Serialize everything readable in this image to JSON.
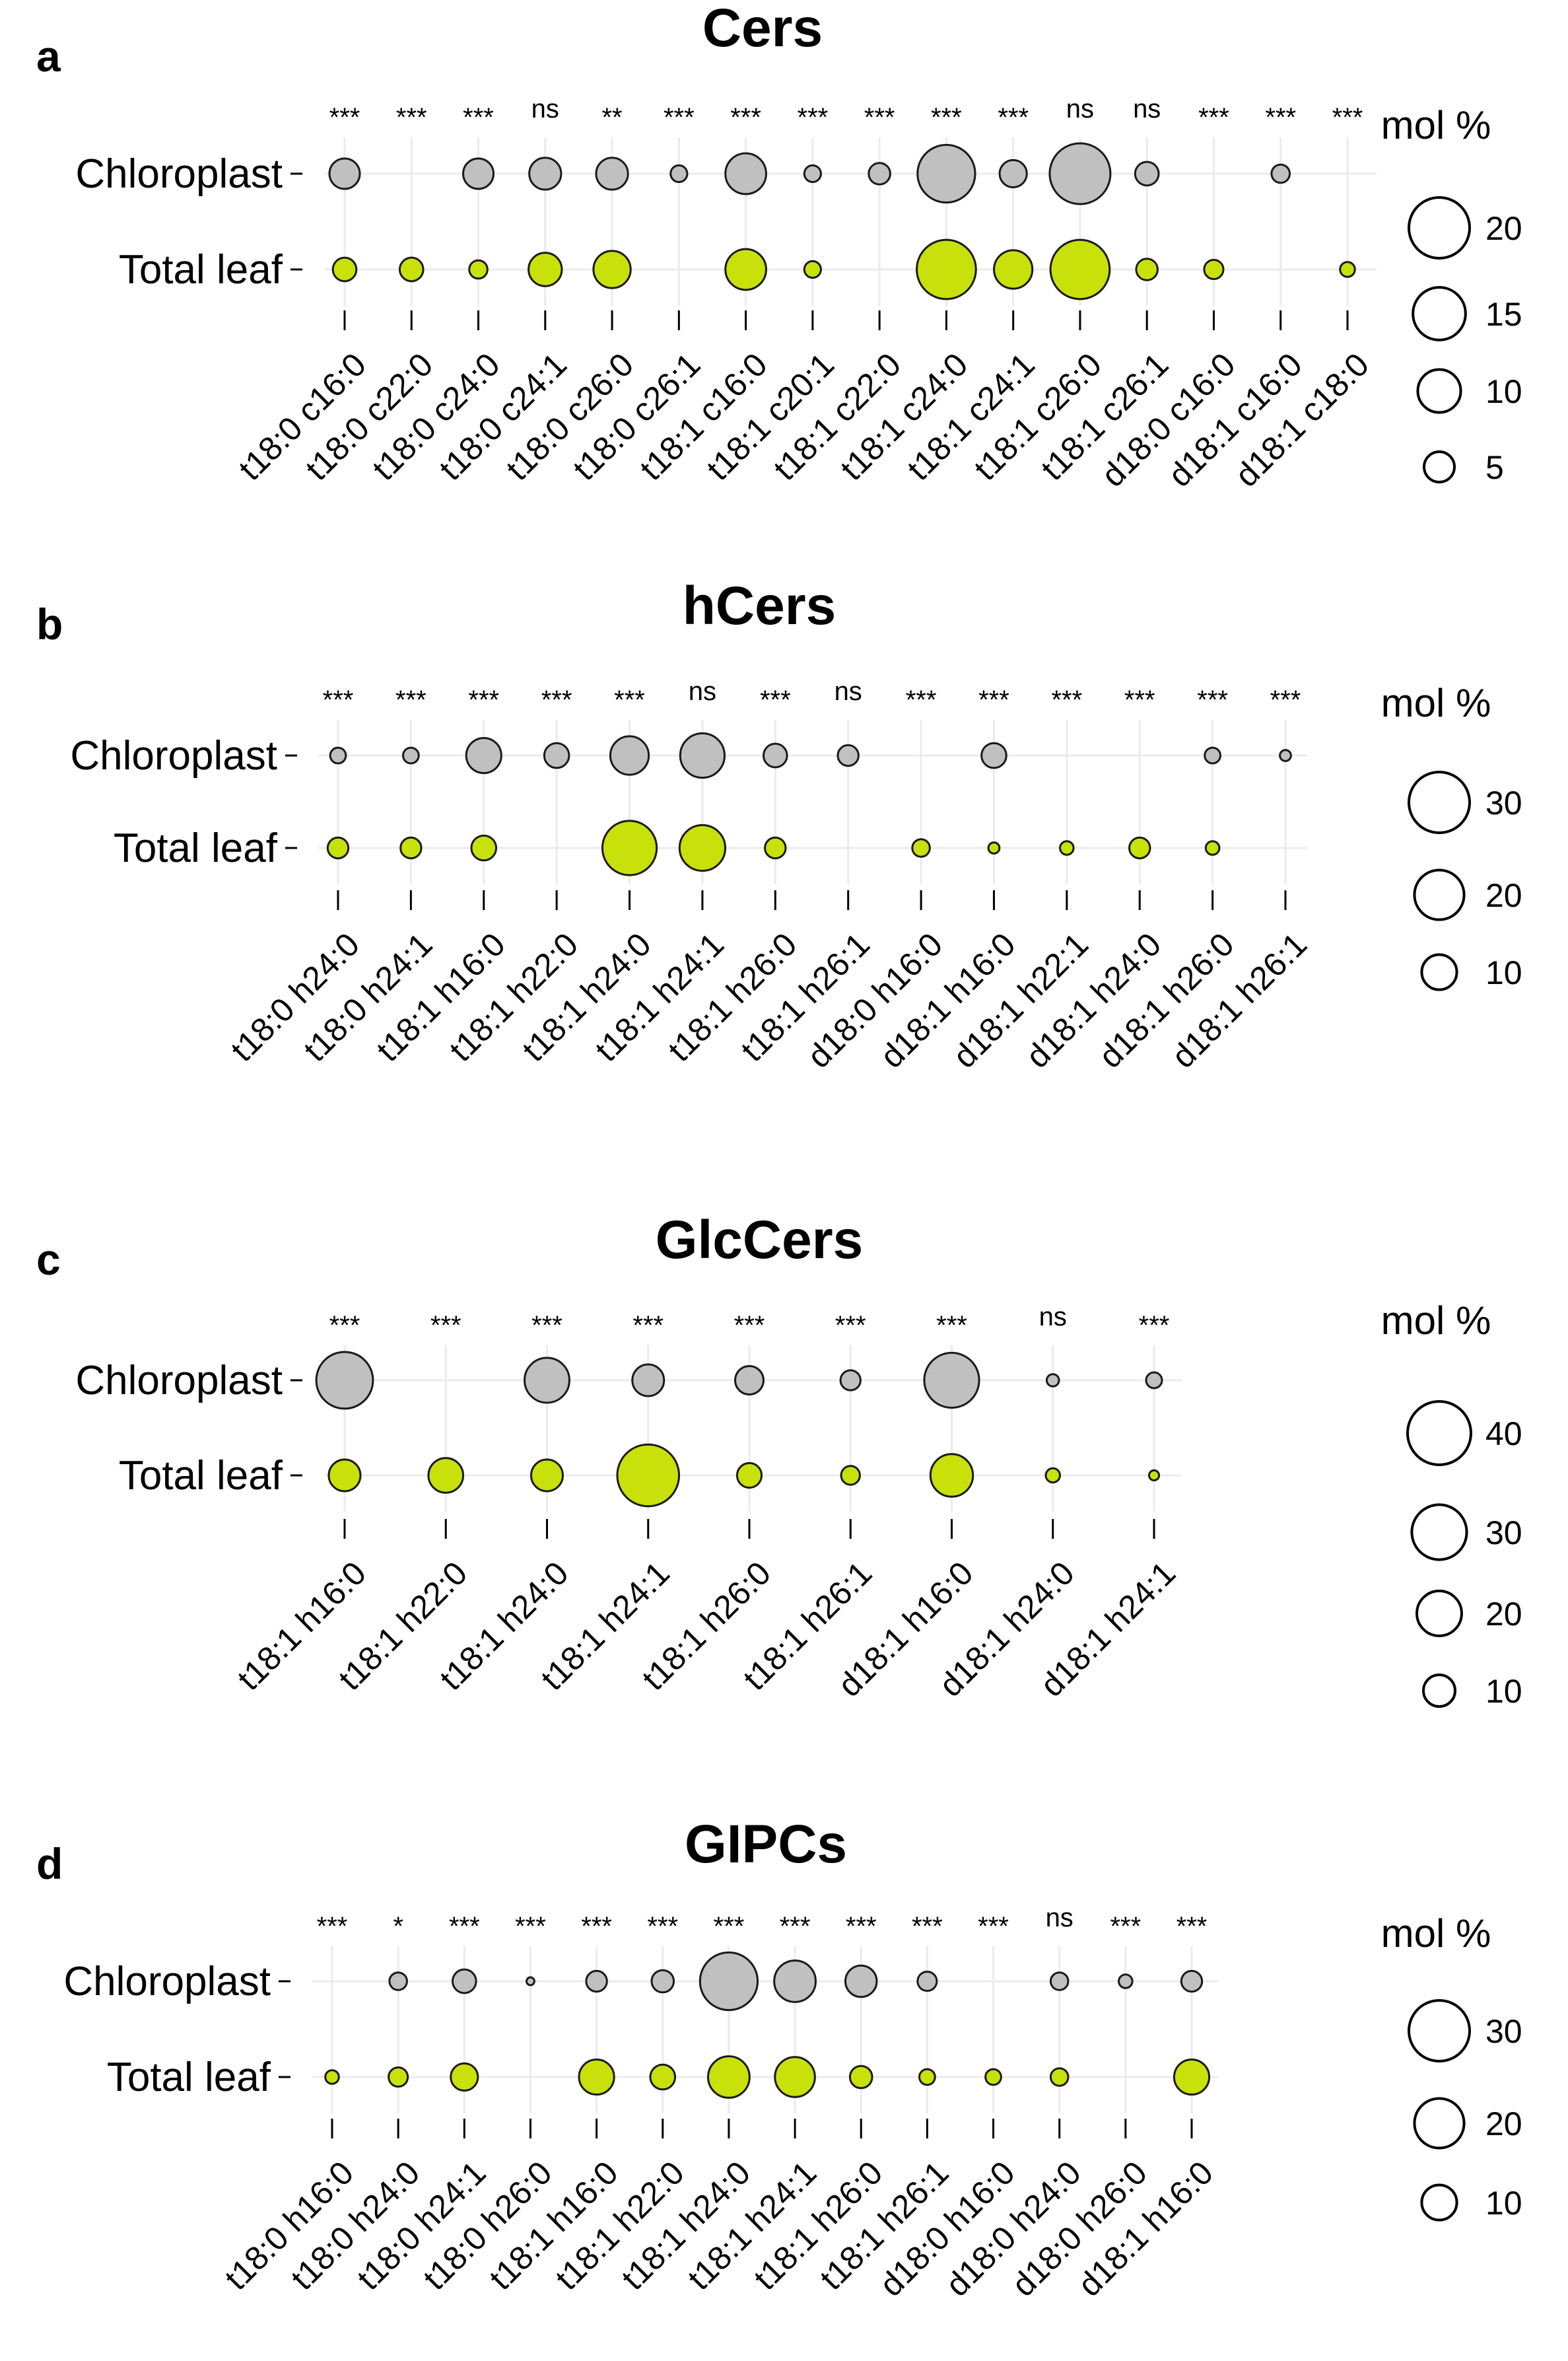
{
  "figure": {
    "row_labels": [
      "Chloroplast",
      "Total leaf"
    ],
    "colors": {
      "chloroplast": "#c0c0c0",
      "total_leaf": "#c8e10a",
      "grid": "#ebebeb"
    }
  },
  "chart_data": [
    {
      "type": "bubble",
      "panel": "a",
      "title": "Cers",
      "rows": [
        "Chloroplast",
        "Total leaf"
      ],
      "categories": [
        "t18:0 c16:0",
        "t18:0 c22:0",
        "t18:0 c24:0",
        "t18:0 c24:1",
        "t18:0 c26:0",
        "t18:0 c26:1",
        "t18:1 c16:0",
        "t18:1 c20:1",
        "t18:1 c22:0",
        "t18:1 c24:0",
        "t18:1 c24:1",
        "t18:1 c26:0",
        "t18:1 c26:1",
        "d18:0 c16:0",
        "d18:1 c16:0",
        "d18:1 c18:0"
      ],
      "significance": [
        "***",
        "***",
        "***",
        "ns",
        "**",
        "***",
        "***",
        "***",
        "***",
        "***",
        "***",
        "ns",
        "ns",
        "***",
        "***",
        "***"
      ],
      "series": [
        {
          "name": "Chloroplast",
          "values": [
            5,
            0,
            5,
            5.5,
            5.5,
            1.5,
            9,
            1.5,
            2.5,
            18,
            4,
            20,
            3,
            0,
            1.8,
            0
          ]
        },
        {
          "name": "Total leaf",
          "values": [
            3,
            3,
            1.8,
            6,
            7.5,
            0,
            9,
            1.5,
            0,
            19,
            8,
            19,
            2.5,
            2,
            0,
            1.2
          ]
        }
      ],
      "legend": {
        "title": "mol %",
        "values": [
          20,
          15,
          10,
          5
        ]
      }
    },
    {
      "type": "bubble",
      "panel": "b",
      "title": "hCers",
      "rows": [
        "Chloroplast",
        "Total leaf"
      ],
      "categories": [
        "t18:0 h24:0",
        "t18:0 h24:1",
        "t18:1 h16:0",
        "t18:1 h22:0",
        "t18:1 h24:0",
        "t18:1 h24:1",
        "t18:1 h26:0",
        "t18:1 h26:1",
        "d18:0 h16:0",
        "d18:1 h16:0",
        "d18:1 h22:1",
        "d18:1 h24:0",
        "d18:1 h26:0",
        "d18:1 h26:1"
      ],
      "significance": [
        "***",
        "***",
        "***",
        "***",
        "***",
        "ns",
        "***",
        "ns",
        "***",
        "***",
        "***",
        "***",
        "***",
        "***"
      ],
      "series": [
        {
          "name": "Chloroplast",
          "values": [
            2,
            2,
            10,
            5,
            12,
            16,
            4.5,
            3.5,
            0,
            5,
            0,
            0,
            2,
            1
          ]
        },
        {
          "name": "Total leaf",
          "values": [
            3.5,
            3.5,
            5,
            0,
            24,
            17,
            3.5,
            0,
            2.5,
            1,
            1.5,
            3.5,
            1.5,
            0
          ]
        }
      ],
      "legend": {
        "title": "mol %",
        "values": [
          30,
          20,
          10
        ]
      }
    },
    {
      "type": "bubble",
      "panel": "c",
      "title": "GlcCers",
      "rows": [
        "Chloroplast",
        "Total leaf"
      ],
      "categories": [
        "t18:1 h16:0",
        "t18:1 h22:0",
        "t18:1 h24:0",
        "t18:1 h24:1",
        "t18:1 h26:0",
        "t18:1 h26:1",
        "d18:1 h16:0",
        "d18:1 h24:0",
        "d18:1 h24:1"
      ],
      "significance": [
        "***",
        "***",
        "***",
        "***",
        "***",
        "***",
        "***",
        "ns",
        "***"
      ],
      "series": [
        {
          "name": "Chloroplast",
          "values": [
            32,
            0,
            20,
            10,
            8,
            4,
            30,
            1.5,
            2.5
          ]
        },
        {
          "name": "Total leaf",
          "values": [
            10,
            12,
            10,
            38,
            6,
            3.5,
            18,
            2,
            1
          ]
        }
      ],
      "legend": {
        "title": "mol %",
        "values": [
          40,
          30,
          20,
          10
        ]
      }
    },
    {
      "type": "bubble",
      "panel": "d",
      "title": "GIPCs",
      "rows": [
        "Chloroplast",
        "Total leaf"
      ],
      "categories": [
        "t18:0 h16:0",
        "t18:0 h24:0",
        "t18:0 h24:1",
        "t18:0 h26:0",
        "t18:1 h16:0",
        "t18:1 h22:0",
        "t18:1 h24:0",
        "t18:1 h24:1",
        "t18:1 h26:0",
        "t18:1 h26:1",
        "d18:0 h16:0",
        "d18:0 h24:0",
        "d18:0 h26:0",
        "d18:1 h16:0"
      ],
      "significance": [
        "***",
        "*",
        "***",
        "***",
        "***",
        "***",
        "***",
        "***",
        "***",
        "***",
        "***",
        "ns",
        "***",
        "***"
      ],
      "series": [
        {
          "name": "Chloroplast",
          "values": [
            0,
            2.5,
            4.5,
            0.5,
            3.5,
            4,
            27,
            14,
            8,
            3,
            0,
            2.5,
            1.5,
            3.5
          ]
        },
        {
          "name": "Total leaf",
          "values": [
            1.5,
            3,
            6,
            0,
            10,
            5,
            14,
            13,
            4,
            2,
            2,
            2.5,
            0,
            10
          ]
        }
      ],
      "legend": {
        "title": "mol %",
        "values": [
          30,
          20,
          10
        ]
      }
    }
  ]
}
